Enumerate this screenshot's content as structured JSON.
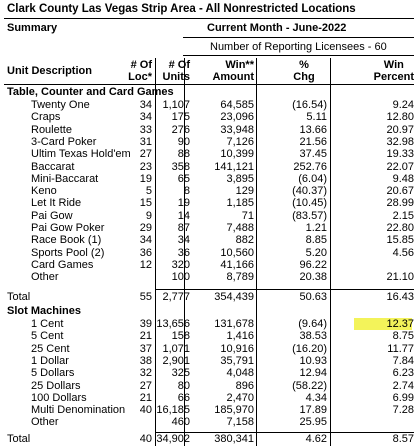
{
  "report": {
    "title": "Clark County Las Vegas Strip Area - All Nonrestricted Locations",
    "summary_label": "Summary",
    "period": "Current Month - June-2022",
    "licensees": "Number of Reporting Licensees - 60"
  },
  "columns": {
    "unit_desc": "Unit Description",
    "locs_1": "# Of",
    "locs_2": "Loc*",
    "units_1": "# Of",
    "units_2": "Units",
    "win_1": "Win**",
    "win_2": "Amount",
    "chg_1": "%",
    "chg_2": "Chg",
    "pct_1": "Win",
    "pct_2": "Percent"
  },
  "tables": {
    "section_label": "Table, Counter and Card Games",
    "rows": [
      {
        "name": "Twenty One",
        "locs": "34",
        "units": "1,107",
        "win": "64,585",
        "chg": "(16.54)",
        "pct": "9.24"
      },
      {
        "name": "Craps",
        "locs": "34",
        "units": "175",
        "win": "23,096",
        "chg": "5.11",
        "pct": "12.80"
      },
      {
        "name": "Roulette",
        "locs": "33",
        "units": "276",
        "win": "33,948",
        "chg": "13.66",
        "pct": "20.97"
      },
      {
        "name": "3-Card Poker",
        "locs": "31",
        "units": "90",
        "win": "7,126",
        "chg": "21.56",
        "pct": "32.98"
      },
      {
        "name": "Ultim Texas Hold'em",
        "locs": "27",
        "units": "88",
        "win": "10,399",
        "chg": "37.45",
        "pct": "19.33"
      },
      {
        "name": "Baccarat",
        "locs": "23",
        "units": "358",
        "win": "141,121",
        "chg": "252.76",
        "pct": "22.07"
      },
      {
        "name": "Mini-Baccarat",
        "locs": "19",
        "units": "65",
        "win": "3,895",
        "chg": "(6.04)",
        "pct": "9.48"
      },
      {
        "name": "Keno",
        "locs": "5",
        "units": "8",
        "win": "129",
        "chg": "(40.37)",
        "pct": "20.67"
      },
      {
        "name": "Let It Ride",
        "locs": "15",
        "units": "19",
        "win": "1,185",
        "chg": "(10.45)",
        "pct": "28.99"
      },
      {
        "name": "Pai Gow",
        "locs": "9",
        "units": "14",
        "win": "71",
        "chg": "(83.57)",
        "pct": "2.15"
      },
      {
        "name": "Pai Gow Poker",
        "locs": "29",
        "units": "87",
        "win": "7,488",
        "chg": "1.21",
        "pct": "22.80"
      },
      {
        "name": "Race Book (1)",
        "locs": "34",
        "units": "34",
        "win": "882",
        "chg": "8.85",
        "pct": "15.85"
      },
      {
        "name": "Sports Pool (2)",
        "locs": "36",
        "units": "36",
        "win": "10,560",
        "chg": "5.20",
        "pct": "4.56"
      },
      {
        "name": "Card Games",
        "locs": "12",
        "units": "320",
        "win": "41,166",
        "chg": "96.22",
        "pct": ""
      },
      {
        "name": "Other",
        "locs": "",
        "units": "100",
        "win": "8,789",
        "chg": "20.38",
        "pct": "21.10"
      }
    ],
    "total": {
      "name": "Total",
      "locs": "55",
      "units": "2,777",
      "win": "354,439",
      "chg": "50.63",
      "pct": "16.43"
    }
  },
  "slots": {
    "section_label": "Slot Machines",
    "rows": [
      {
        "name": "1 Cent",
        "locs": "39",
        "units": "13,656",
        "win": "131,678",
        "chg": "(9.64)",
        "pct": "12.37"
      },
      {
        "name": "5 Cent",
        "locs": "21",
        "units": "158",
        "win": "1,416",
        "chg": "38.53",
        "pct": "8.75"
      },
      {
        "name": "25 Cent",
        "locs": "37",
        "units": "1,071",
        "win": "10,916",
        "chg": "(16.20)",
        "pct": "11.77"
      },
      {
        "name": "1 Dollar",
        "locs": "38",
        "units": "2,901",
        "win": "35,791",
        "chg": "10.93",
        "pct": "7.84"
      },
      {
        "name": "5 Dollars",
        "locs": "32",
        "units": "325",
        "win": "4,048",
        "chg": "12.94",
        "pct": "6.23"
      },
      {
        "name": "25 Dollars",
        "locs": "27",
        "units": "80",
        "win": "896",
        "chg": "(58.22)",
        "pct": "2.74"
      },
      {
        "name": "100 Dollars",
        "locs": "21",
        "units": "66",
        "win": "2,470",
        "chg": "4.34",
        "pct": "6.99"
      },
      {
        "name": "Multi Denomination",
        "locs": "40",
        "units": "16,185",
        "win": "185,970",
        "chg": "17.89",
        "pct": "7.28"
      },
      {
        "name": "Other",
        "locs": "",
        "units": "460",
        "win": "7,158",
        "chg": "25.95",
        "pct": ""
      }
    ],
    "total": {
      "name": "Total",
      "locs": "40",
      "units": "34,902",
      "win": "380,341",
      "chg": "4.62",
      "pct": "8.57"
    }
  },
  "highlight_color": "#f3f35a"
}
